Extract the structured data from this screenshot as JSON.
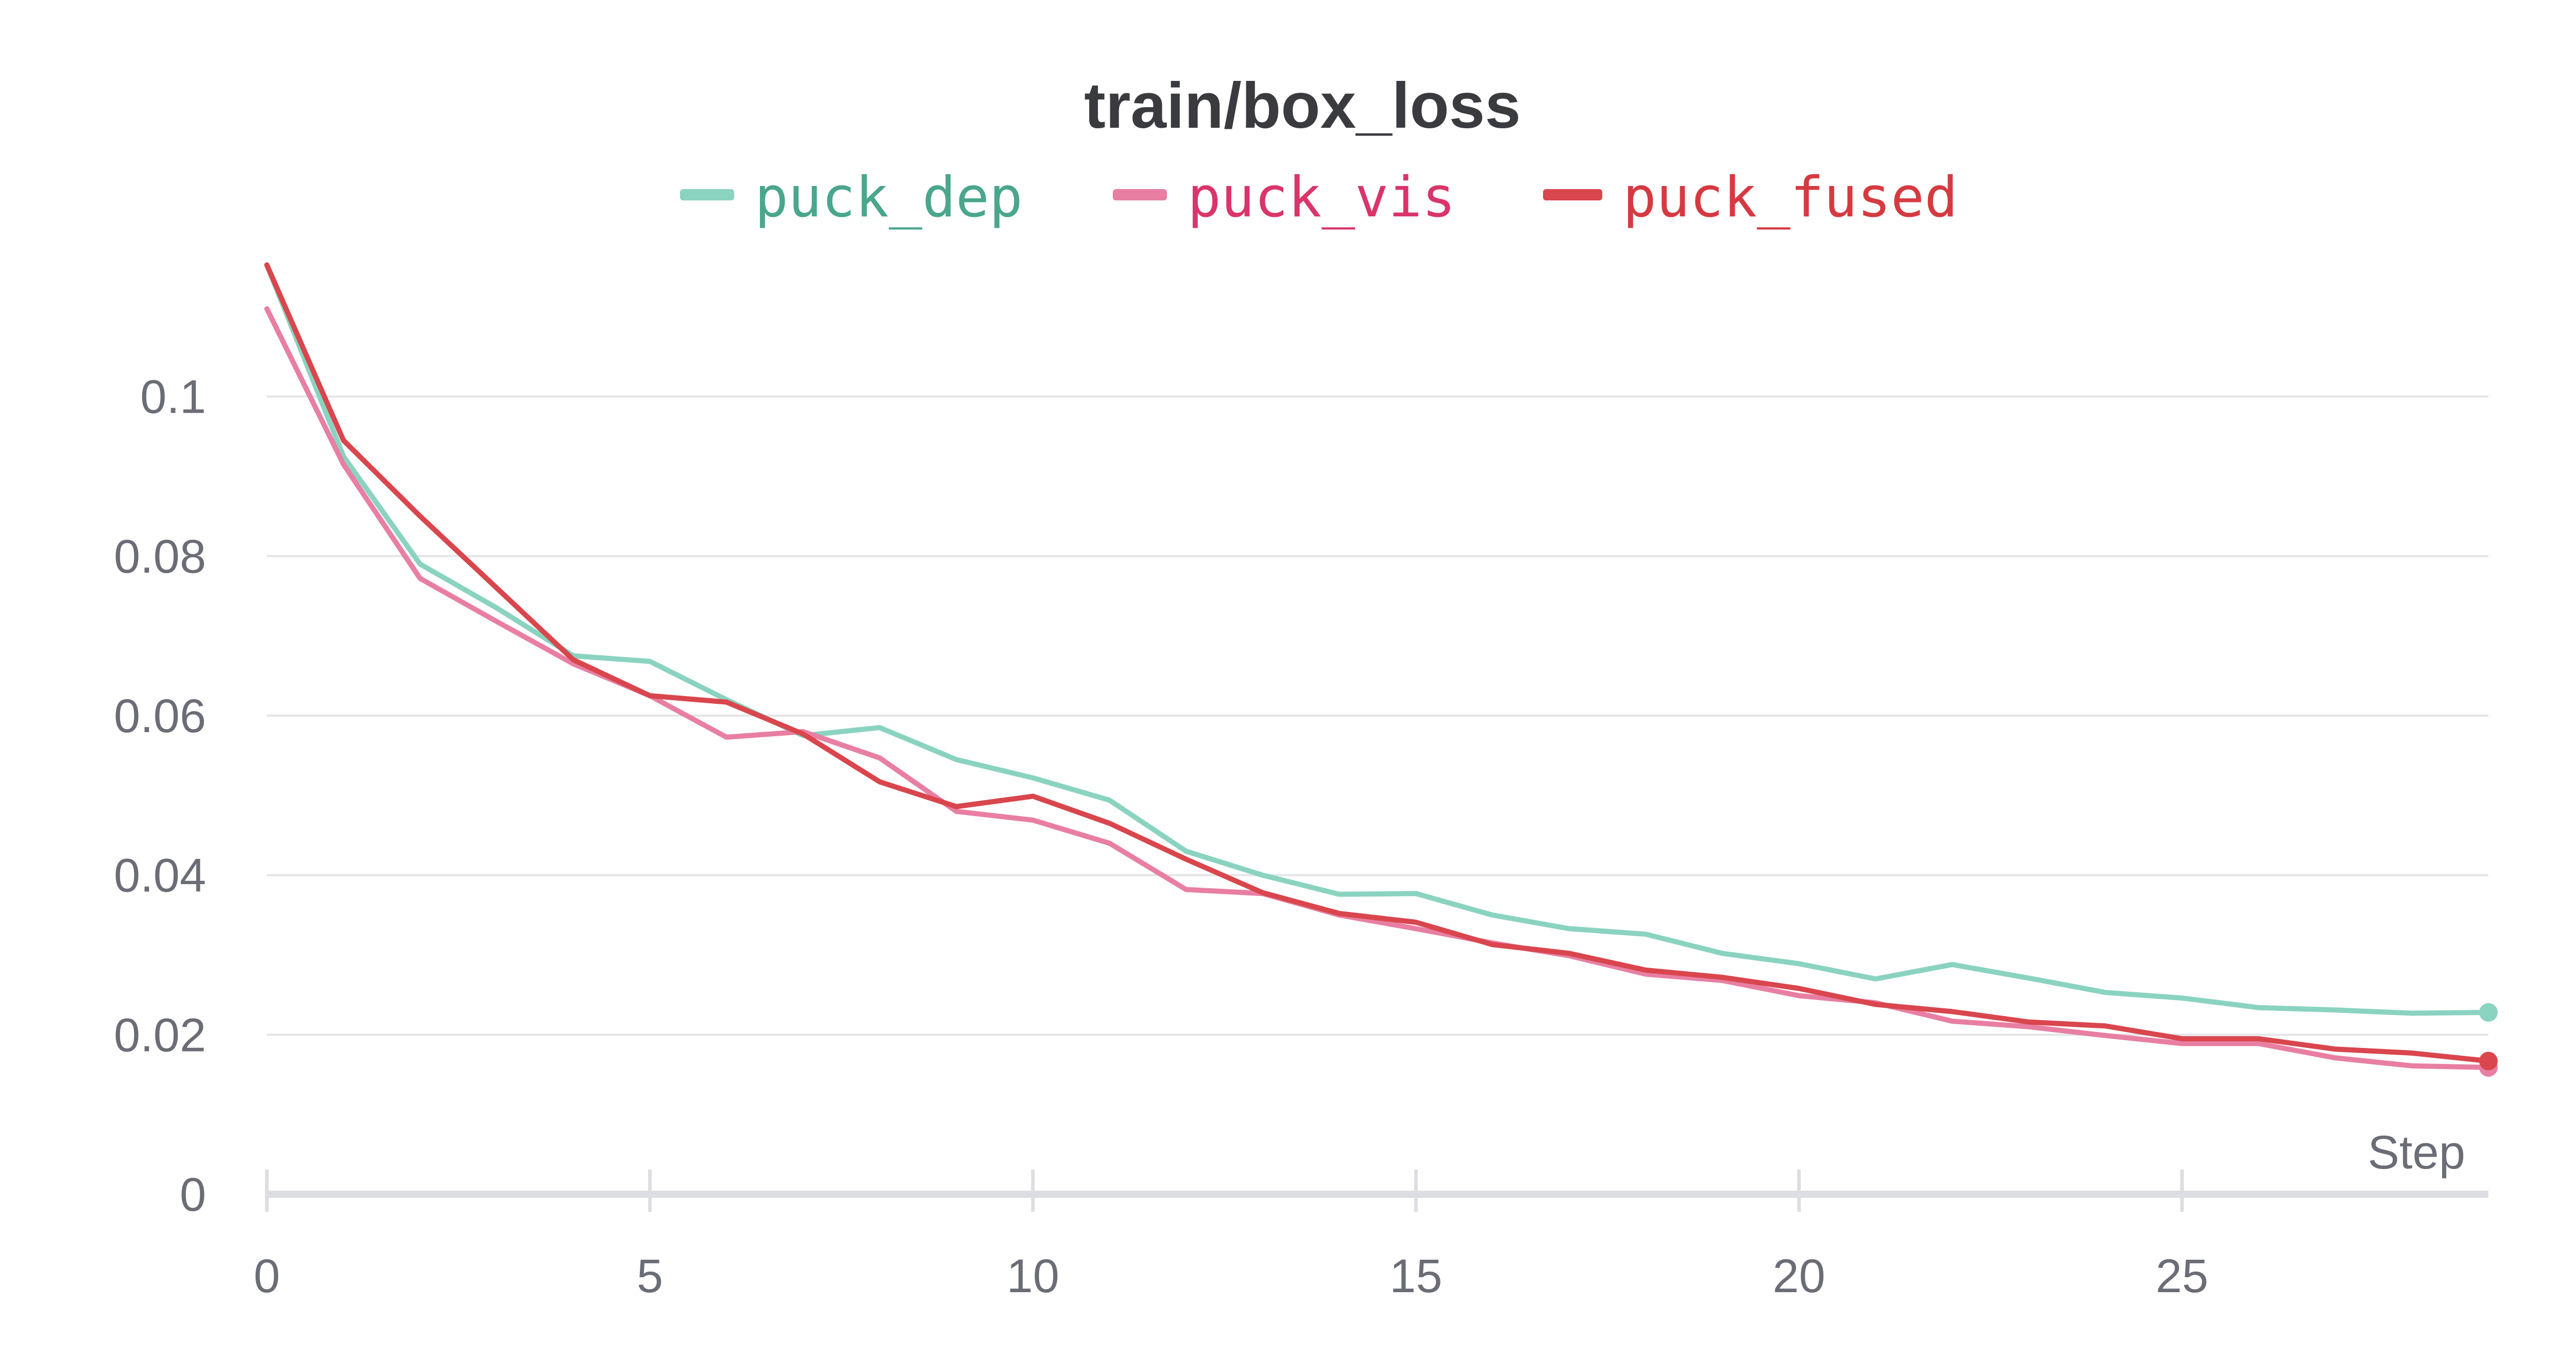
{
  "chart_data": {
    "type": "line",
    "title": "train/box_loss",
    "xlabel": "Step",
    "ylabel": "",
    "xlim": [
      0,
      29
    ],
    "ylim": [
      0,
      0.12
    ],
    "x_ticks": [
      0,
      5,
      10,
      15,
      20,
      25
    ],
    "x_tick_labels": [
      "0",
      "5",
      "10",
      "15",
      "20",
      "25"
    ],
    "y_ticks": [
      0,
      0.02,
      0.04,
      0.06,
      0.08,
      0.1
    ],
    "y_tick_labels": [
      "0",
      "0.02",
      "0.04",
      "0.06",
      "0.08",
      "0.1"
    ],
    "grid": "horizontal",
    "legend": "top-center",
    "x": [
      0,
      1,
      2,
      3,
      4,
      5,
      6,
      7,
      8,
      9,
      10,
      11,
      12,
      13,
      14,
      15,
      16,
      17,
      18,
      19,
      20,
      21,
      22,
      23,
      24,
      25,
      26,
      27,
      28,
      29
    ],
    "series": [
      {
        "name": "puck_dep",
        "color": "#8ad3c0",
        "label_color": "#4aa68c",
        "values": [
          0.1165,
          0.0925,
          0.079,
          0.0735,
          0.0675,
          0.0668,
          0.062,
          0.0575,
          0.0585,
          0.0545,
          0.0522,
          0.0494,
          0.043,
          0.04,
          0.0376,
          0.0377,
          0.035,
          0.0333,
          0.0326,
          0.0302,
          0.0289,
          0.027,
          0.0288,
          0.0271,
          0.0253,
          0.0246,
          0.0234,
          0.0231,
          0.0227,
          0.0228
        ]
      },
      {
        "name": "puck_vis",
        "color": "#e87fa3",
        "label_color": "#d9356a",
        "values": [
          0.111,
          0.0915,
          0.0772,
          0.0718,
          0.0665,
          0.0625,
          0.0573,
          0.058,
          0.0547,
          0.048,
          0.0469,
          0.044,
          0.0382,
          0.0377,
          0.035,
          0.0333,
          0.0315,
          0.0299,
          0.0276,
          0.0268,
          0.0249,
          0.024,
          0.0217,
          0.021,
          0.0199,
          0.0189,
          0.0189,
          0.0171,
          0.0161,
          0.0159
        ]
      },
      {
        "name": "puck_fused",
        "color": "#d9464d",
        "label_color": "#d63a41",
        "values": [
          0.1165,
          0.0945,
          0.085,
          0.076,
          0.067,
          0.0625,
          0.0617,
          0.0577,
          0.0517,
          0.0486,
          0.0499,
          0.0465,
          0.042,
          0.0378,
          0.0352,
          0.0341,
          0.0313,
          0.0302,
          0.0281,
          0.0272,
          0.0258,
          0.0238,
          0.0229,
          0.0216,
          0.0211,
          0.0195,
          0.0195,
          0.0182,
          0.0177,
          0.0167
        ]
      }
    ]
  }
}
